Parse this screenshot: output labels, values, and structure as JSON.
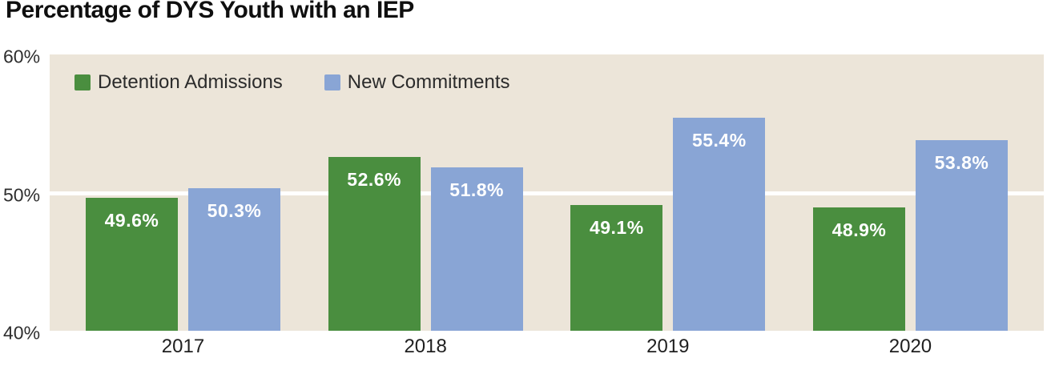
{
  "chart_data": {
    "type": "bar",
    "title": "Percentage of DYS Youth with an IEP",
    "categories": [
      "2017",
      "2018",
      "2019",
      "2020"
    ],
    "series": [
      {
        "name": "Detention Admissions",
        "color": "#4a8e3f",
        "values": [
          49.6,
          52.6,
          49.1,
          48.9
        ]
      },
      {
        "name": "New Commitments",
        "color": "#89a5d5",
        "values": [
          50.3,
          51.8,
          55.4,
          53.8
        ]
      }
    ],
    "value_labels": [
      [
        "49.6%",
        "52.6%",
        "49.1%",
        "48.9%"
      ],
      [
        "50.3%",
        "51.8%",
        "55.4%",
        "53.8%"
      ]
    ],
    "ylim": [
      40,
      60
    ],
    "y_ticks": [
      60,
      50,
      40
    ],
    "y_tick_labels": [
      "60%",
      "50%",
      "40%"
    ],
    "gridlines": [
      50
    ],
    "legend_position": "top-left",
    "grid_on": true,
    "colors": {
      "plot_background": "#ece5d9",
      "grid_color": "#ffffff",
      "value_label_color": "#ffffff",
      "title_color": "#0f0f0f"
    }
  }
}
